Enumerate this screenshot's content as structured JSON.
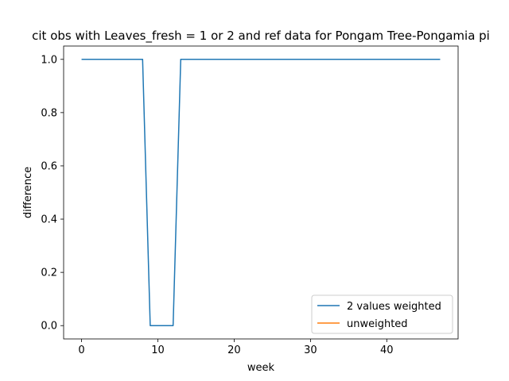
{
  "chart_data": {
    "type": "line",
    "title": "cit obs with Leaves_fresh = 1 or 2 and ref data for Pongam Tree-Pongamia pi",
    "xlabel": "week",
    "ylabel": "difference",
    "xlim": [
      -2.35,
      49.35
    ],
    "ylim": [
      -0.05,
      1.05
    ],
    "xticks": [
      0,
      10,
      20,
      30,
      40
    ],
    "yticks": [
      0.0,
      0.2,
      0.4,
      0.6,
      0.8,
      1.0
    ],
    "xtick_labels": [
      "0",
      "10",
      "20",
      "30",
      "40"
    ],
    "ytick_labels": [
      "0.0",
      "0.2",
      "0.4",
      "0.6",
      "0.8",
      "1.0"
    ],
    "grid": false,
    "legend_position": "lower-right",
    "series": [
      {
        "name": "2 values weighted",
        "color": "#1f77b4",
        "x": [
          0,
          1,
          2,
          3,
          4,
          5,
          6,
          7,
          8,
          9,
          10,
          11,
          12,
          13,
          14,
          15,
          16,
          17,
          18,
          19,
          20,
          21,
          22,
          23,
          24,
          25,
          26,
          27,
          28,
          29,
          30,
          31,
          32,
          33,
          34,
          35,
          36,
          37,
          38,
          39,
          40,
          41,
          42,
          43,
          44,
          45,
          46,
          47
        ],
        "y": [
          1,
          1,
          1,
          1,
          1,
          1,
          1,
          1,
          1,
          0,
          0,
          0,
          0,
          1,
          1,
          1,
          1,
          1,
          1,
          1,
          1,
          1,
          1,
          1,
          1,
          1,
          1,
          1,
          1,
          1,
          1,
          1,
          1,
          1,
          1,
          1,
          1,
          1,
          1,
          1,
          1,
          1,
          1,
          1,
          1,
          1,
          1,
          1
        ]
      },
      {
        "name": "unweighted",
        "color": "#ff7f0e",
        "x": [],
        "y": []
      }
    ]
  }
}
